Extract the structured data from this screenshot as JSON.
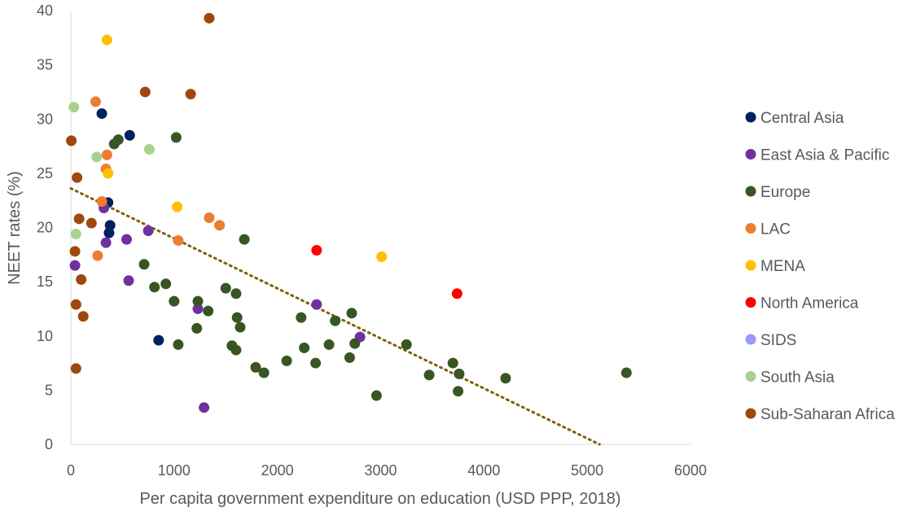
{
  "chart_data": {
    "type": "scatter",
    "xlabel": "Per capita government expenditure on education (USD PPP, 2018)",
    "ylabel": "NEET rates (%)",
    "xlim": [
      0,
      6000
    ],
    "ylim": [
      0,
      40
    ],
    "xticks": [
      "0",
      "1000",
      "2000",
      "3000",
      "4000",
      "5000",
      "6000"
    ],
    "yticks": [
      "0",
      "5",
      "10",
      "15",
      "20",
      "25",
      "30",
      "35",
      "40"
    ],
    "grid": false,
    "legend_position": "right",
    "trendline": {
      "type": "linear",
      "color": "#7f6000",
      "style": "dotted",
      "points": [
        [
          0,
          23.6
        ],
        [
          5120,
          0
        ]
      ]
    },
    "series": [
      {
        "name": "Central Asia",
        "color": "#002060",
        "points": [
          [
            300,
            30.5
          ],
          [
            570,
            28.5
          ],
          [
            360,
            22.3
          ],
          [
            380,
            20.2
          ],
          [
            370,
            19.5
          ],
          [
            850,
            9.6
          ]
        ]
      },
      {
        "name": "East Asia & Pacific",
        "color": "#7030a0",
        "points": [
          [
            40,
            16.5
          ],
          [
            320,
            21.8
          ],
          [
            340,
            18.6
          ],
          [
            540,
            18.9
          ],
          [
            560,
            15.1
          ],
          [
            750,
            19.7
          ],
          [
            1230,
            12.5
          ],
          [
            1290,
            3.4
          ],
          [
            2380,
            12.9
          ],
          [
            2800,
            9.9
          ]
        ]
      },
      {
        "name": "Europe",
        "color": "#375623",
        "points": [
          [
            420,
            27.7
          ],
          [
            460,
            28.1
          ],
          [
            1020,
            28.3
          ],
          [
            1680,
            18.9
          ],
          [
            710,
            16.6
          ],
          [
            810,
            14.5
          ],
          [
            920,
            14.8
          ],
          [
            1000,
            13.2
          ],
          [
            1040,
            9.2
          ],
          [
            1230,
            13.2
          ],
          [
            1330,
            12.3
          ],
          [
            1220,
            10.7
          ],
          [
            1500,
            14.4
          ],
          [
            1600,
            13.9
          ],
          [
            1610,
            11.7
          ],
          [
            1640,
            10.8
          ],
          [
            1560,
            9.1
          ],
          [
            1600,
            8.7
          ],
          [
            1790,
            7.1
          ],
          [
            1870,
            6.6
          ],
          [
            2090,
            7.7
          ],
          [
            2230,
            11.7
          ],
          [
            2260,
            8.9
          ],
          [
            2370,
            7.5
          ],
          [
            2500,
            9.2
          ],
          [
            2560,
            11.4
          ],
          [
            2720,
            12.1
          ],
          [
            2700,
            8.0
          ],
          [
            2750,
            9.3
          ],
          [
            2960,
            4.5
          ],
          [
            3250,
            9.2
          ],
          [
            3470,
            6.4
          ],
          [
            3700,
            7.5
          ],
          [
            3760,
            6.5
          ],
          [
            3750,
            4.9
          ],
          [
            4210,
            6.1
          ],
          [
            5380,
            6.6
          ]
        ]
      },
      {
        "name": "LAC",
        "color": "#ed7d31",
        "points": [
          [
            240,
            31.6
          ],
          [
            350,
            26.7
          ],
          [
            340,
            25.4
          ],
          [
            300,
            22.4
          ],
          [
            260,
            17.4
          ],
          [
            1040,
            18.8
          ],
          [
            1340,
            20.9
          ],
          [
            1440,
            20.2
          ]
        ]
      },
      {
        "name": "MENA",
        "color": "#ffc000",
        "points": [
          [
            350,
            37.3
          ],
          [
            360,
            25.0
          ],
          [
            1030,
            21.9
          ],
          [
            3010,
            17.3
          ]
        ]
      },
      {
        "name": "North America",
        "color": "#ff0000",
        "points": [
          [
            2380,
            17.9
          ],
          [
            3740,
            13.9
          ]
        ]
      },
      {
        "name": "SIDS",
        "color": "#9999ff",
        "points": []
      },
      {
        "name": "South Asia",
        "color": "#a9d18e",
        "points": [
          [
            30,
            31.1
          ],
          [
            250,
            26.5
          ],
          [
            760,
            27.2
          ],
          [
            50,
            19.4
          ]
        ]
      },
      {
        "name": "Sub-Saharan Africa",
        "color": "#9e480e",
        "points": [
          [
            1340,
            39.3
          ],
          [
            720,
            32.5
          ],
          [
            1160,
            32.3
          ],
          [
            5,
            28.0
          ],
          [
            60,
            24.6
          ],
          [
            80,
            20.8
          ],
          [
            200,
            20.4
          ],
          [
            40,
            17.8
          ],
          [
            100,
            15.2
          ],
          [
            50,
            12.9
          ],
          [
            120,
            11.8
          ],
          [
            50,
            7.0
          ]
        ]
      }
    ]
  }
}
